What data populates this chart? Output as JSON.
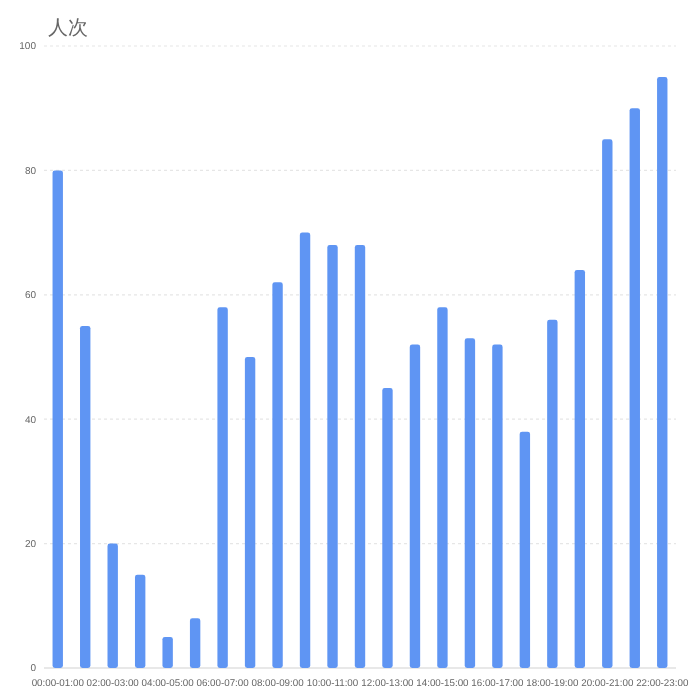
{
  "chart_data": {
    "type": "bar",
    "ylabel": "人次",
    "categories": [
      "00:00-01:00",
      null,
      "02:00-03:00",
      null,
      "04:00-05:00",
      null,
      "06:00-07:00",
      null,
      "08:00-09:00",
      null,
      "10:00-11:00",
      null,
      "12:00-13:00",
      null,
      "14:00-15:00",
      null,
      "16:00-17:00",
      null,
      "18:00-19:00",
      null,
      "20:00-21:00",
      null,
      "22:00-23:00"
    ],
    "values": [
      80,
      55,
      20,
      15,
      5,
      8,
      58,
      50,
      62,
      70,
      68,
      68,
      45,
      52,
      58,
      53,
      52,
      38,
      56,
      64,
      85,
      90,
      95
    ],
    "color": "#5f95f3",
    "ylim": [
      0,
      100
    ],
    "yticks": [
      0,
      20,
      40,
      60,
      80,
      100
    ],
    "grid": "y"
  }
}
